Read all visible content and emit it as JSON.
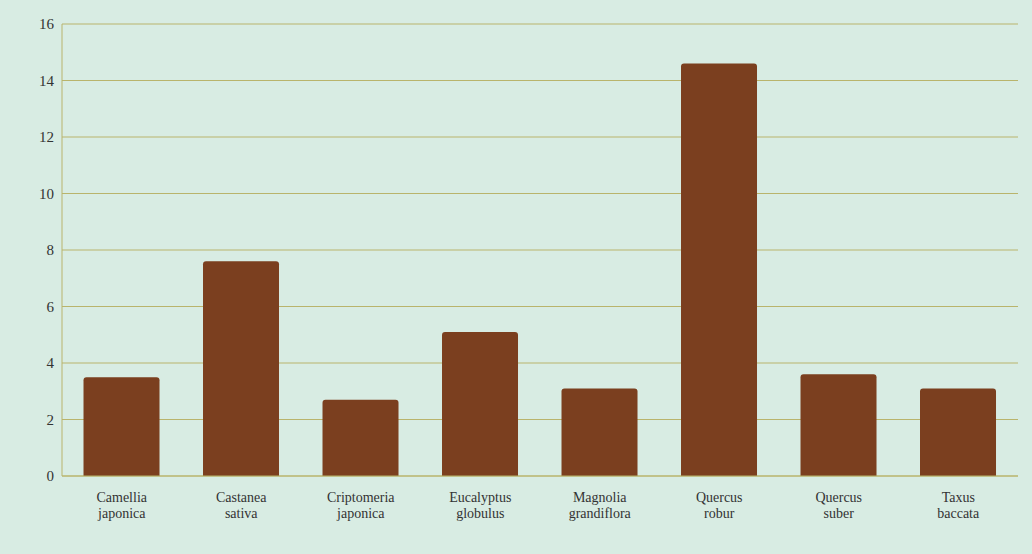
{
  "chart_data": {
    "type": "bar",
    "categories": [
      "Camellia japonica",
      "Castanea sativa",
      "Criptomeria japonica",
      "Eucalyptus globulus",
      "Magnolia grandiflora",
      "Quercus robur",
      "Quercus suber",
      "Taxus baccata"
    ],
    "values": [
      3.5,
      7.6,
      2.7,
      5.1,
      3.1,
      14.6,
      3.6,
      3.1
    ],
    "color": "#7b3f1f",
    "ylim": [
      0,
      16
    ],
    "yticks": [
      0,
      2,
      4,
      6,
      8,
      10,
      12,
      14,
      16
    ],
    "grid": true
  }
}
